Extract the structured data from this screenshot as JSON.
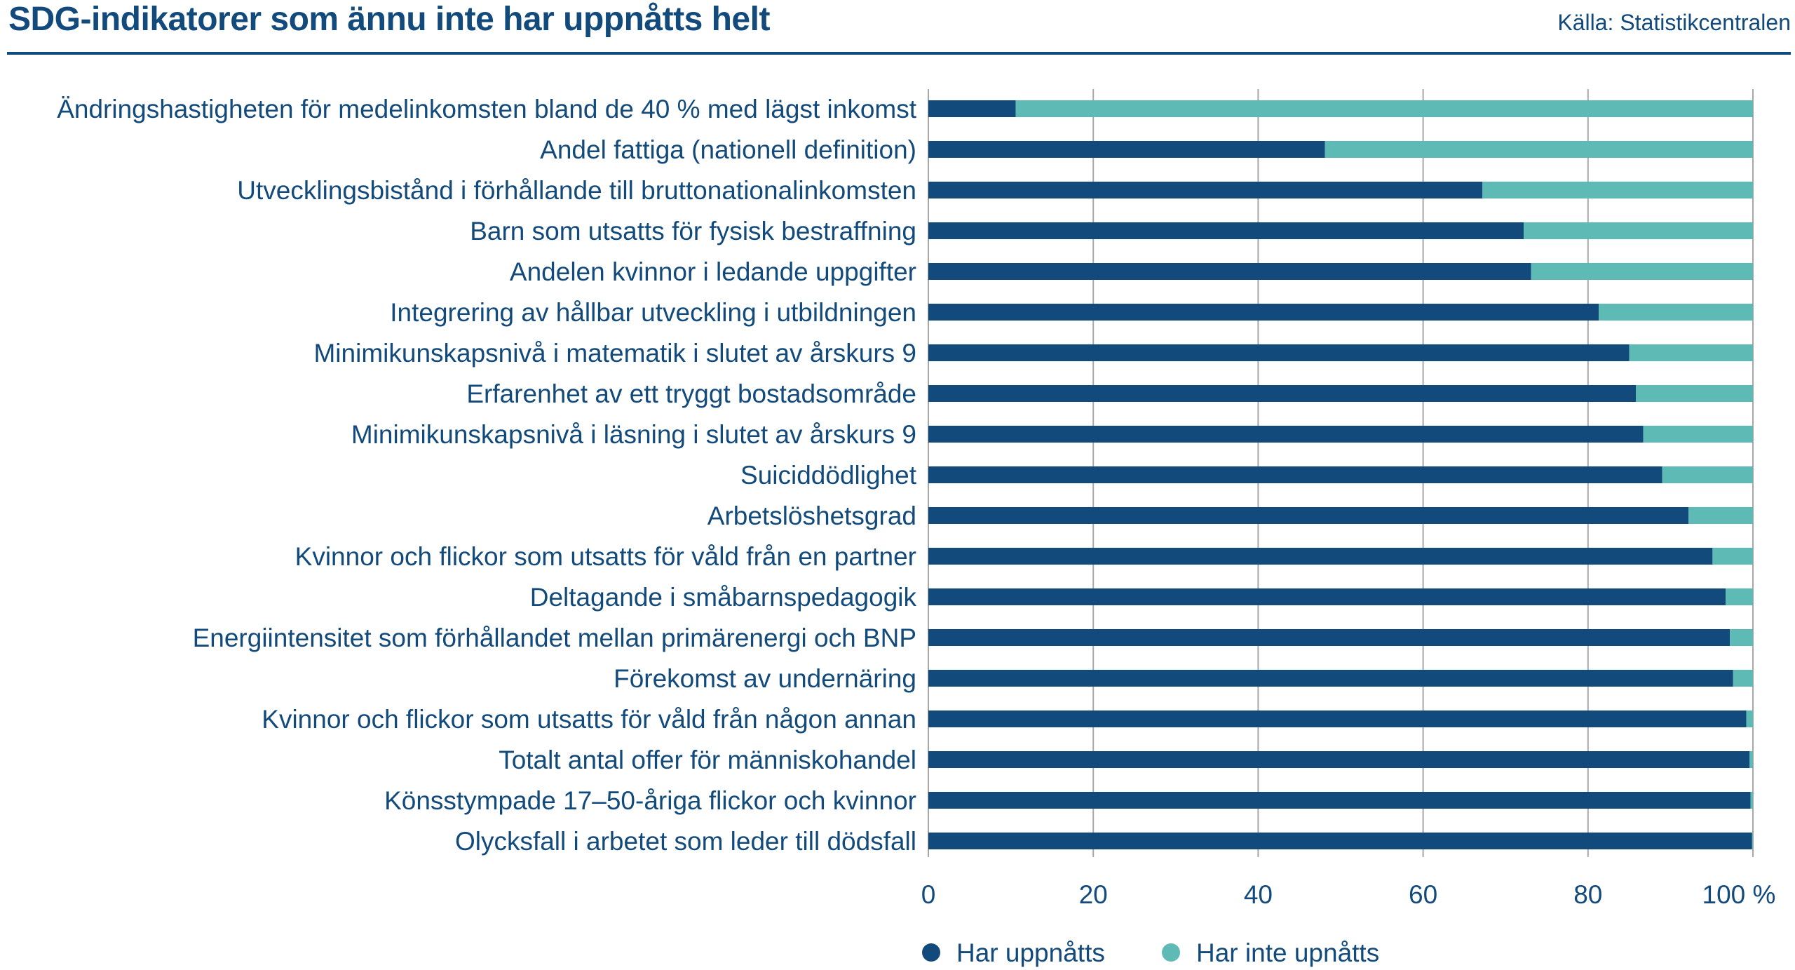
{
  "header": {
    "title": "SDG-indikatorer som ännu inte har uppnåtts helt",
    "source": "Källa: Statistikcentralen"
  },
  "colors": {
    "achieved": "#134a7c",
    "not_achieved": "#5dbab5"
  },
  "chart_data": {
    "type": "bar",
    "orientation": "horizontal",
    "stacked": true,
    "title": "SDG-indikatorer som ännu inte har uppnåtts helt",
    "categories": [
      "Ändringshastigheten för medelinkomsten bland de 40 % med lägst inkomst",
      "Andel fattiga (nationell definition)",
      "Utvecklingsbistånd i förhållande till bruttonationalinkomsten",
      "Barn som utsatts för fysisk bestraffning",
      "Andelen kvinnor i ledande uppgifter",
      "Integrering av hållbar utveckling i utbildningen",
      "Minimikunskapsnivå i matematik i slutet av årskurs 9",
      "Erfarenhet av ett tryggt bostadsområde",
      "Minimikunskapsnivå i läsning i slutet av årskurs 9",
      "Suiciddödlighet",
      "Arbetslöshetsgrad",
      "Kvinnor och flickor som utsatts för våld från en partner",
      "Deltagande i småbarnspedagogik",
      "Energiintensitet som förhållandet mellan primärenergi och BNP",
      "Förekomst av undernäring",
      "Kvinnor och flickor som utsatts för våld från någon annan",
      "Totalt antal offer för människohandel",
      "Könsstympade 17–50-åriga flickor och kvinnor",
      "Olycksfall i arbetet som leder till dödsfall"
    ],
    "series": [
      {
        "name": "Har uppnåtts",
        "values": [
          10.6,
          48.1,
          67.2,
          72.2,
          73.1,
          81.3,
          85.0,
          85.8,
          86.7,
          89.0,
          92.2,
          95.1,
          96.7,
          97.2,
          97.6,
          99.2,
          99.6,
          99.7,
          99.9
        ]
      },
      {
        "name": "Har inte upnåtts",
        "values": [
          89.4,
          51.9,
          32.8,
          27.8,
          26.9,
          18.7,
          15.0,
          14.2,
          13.3,
          11.0,
          7.8,
          4.9,
          3.3,
          2.8,
          2.4,
          0.8,
          0.4,
          0.3,
          0.1
        ]
      }
    ],
    "xlim": [
      0,
      100
    ],
    "xticks": [
      "0",
      "20",
      "40",
      "60",
      "80",
      "100 %"
    ],
    "grid": true,
    "legend": "bottom"
  }
}
